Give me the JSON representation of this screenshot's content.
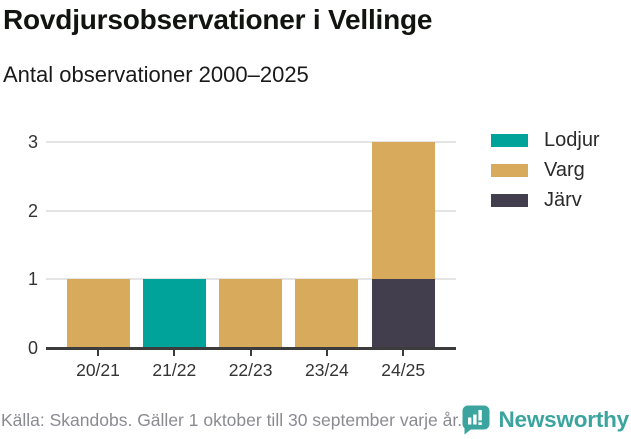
{
  "header": {
    "title": "Rovdjursobservationer i Vellinge",
    "subtitle": "Antal observationer 2000–2025"
  },
  "chart_data": {
    "type": "bar",
    "stacked": true,
    "title": "Rovdjursobservationer i Vellinge",
    "subtitle": "Antal observationer 2000–2025",
    "categories": [
      "20/21",
      "21/22",
      "22/23",
      "23/24",
      "24/25"
    ],
    "series": [
      {
        "name": "Lodjur",
        "color": "#00a39a",
        "values": [
          0,
          1,
          0,
          0,
          0
        ]
      },
      {
        "name": "Varg",
        "color": "#d8ab5c",
        "values": [
          1,
          0,
          1,
          1,
          2
        ]
      },
      {
        "name": "Järv",
        "color": "#423e4e",
        "values": [
          0,
          0,
          0,
          0,
          1
        ]
      }
    ],
    "stack_order": [
      "Järv",
      "Varg",
      "Lodjur"
    ],
    "xlabel": "",
    "ylabel": "",
    "ylim": [
      0,
      3
    ],
    "yticks": [
      0,
      1,
      2,
      3
    ],
    "grid": true,
    "legend_position": "right-top"
  },
  "footer": {
    "source": "Källa: Skandobs. Gäller 1 oktober till 30 september varje år.",
    "brand": "Newsworthy"
  },
  "colors": {
    "axis": "#3c3c3c",
    "grid": "#e4e4e4",
    "text": "#1a1a1a",
    "muted": "#8a8a91",
    "brand": "#3ba49e"
  }
}
